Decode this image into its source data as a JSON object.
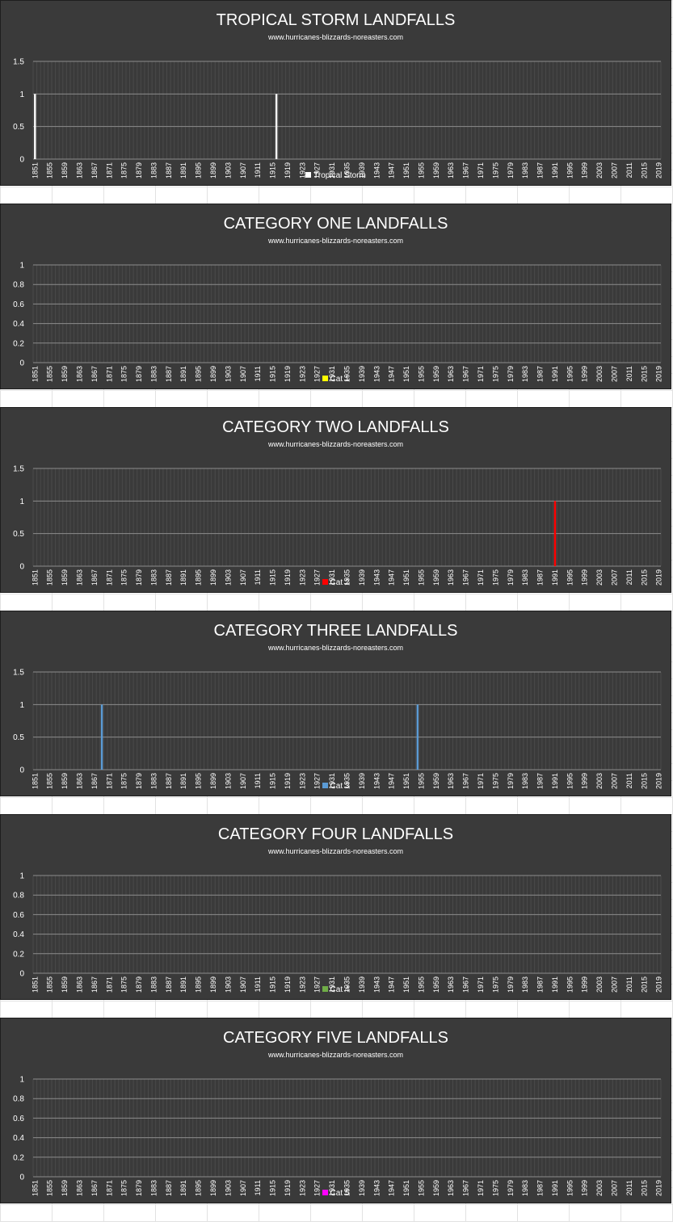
{
  "colors": {
    "background": "#3a3a3a",
    "text": "#ffffff",
    "gridline": "#8c8c8c",
    "category_lines": "#4a4a4a"
  },
  "chart_data": [
    {
      "type": "bar",
      "title": "TROPICAL STORM LANDFALLS",
      "subtitle": "www.hurricanes-blizzards-noreasters.com",
      "x_start": 1851,
      "x_end": 2020,
      "x_tick_step": 4,
      "ylim": [
        0,
        1.5
      ],
      "yticks": [
        "0",
        "0.5",
        "1",
        "1.5"
      ],
      "grid": true,
      "legend_position": "bottom",
      "series": [
        {
          "name": "Tropical Storm",
          "color": "#ffffff",
          "points": [
            {
              "x": 1851,
              "y": 1
            },
            {
              "x": 1916,
              "y": 1
            }
          ]
        }
      ]
    },
    {
      "type": "bar",
      "title": "CATEGORY ONE LANDFALLS",
      "subtitle": "www.hurricanes-blizzards-noreasters.com",
      "x_start": 1851,
      "x_end": 2020,
      "x_tick_step": 4,
      "ylim": [
        0,
        1
      ],
      "yticks": [
        "0",
        "0.2",
        "0.4",
        "0.6",
        "0.8",
        "1"
      ],
      "grid": true,
      "legend_position": "bottom",
      "series": [
        {
          "name": "Cat 1",
          "color": "#ffff00",
          "points": []
        }
      ]
    },
    {
      "type": "bar",
      "title": "CATEGORY TWO LANDFALLS",
      "subtitle": "www.hurricanes-blizzards-noreasters.com",
      "x_start": 1851,
      "x_end": 2020,
      "x_tick_step": 4,
      "ylim": [
        0,
        1.5
      ],
      "yticks": [
        "0",
        "0.5",
        "1",
        "1.5"
      ],
      "grid": true,
      "legend_position": "bottom",
      "series": [
        {
          "name": "Cat 2",
          "color": "#ff0000",
          "points": [
            {
              "x": 1991,
              "y": 1
            }
          ]
        }
      ]
    },
    {
      "type": "bar",
      "title": "CATEGORY THREE LANDFALLS",
      "subtitle": "www.hurricanes-blizzards-noreasters.com",
      "x_start": 1851,
      "x_end": 2020,
      "x_tick_step": 4,
      "ylim": [
        0,
        1.5
      ],
      "yticks": [
        "0",
        "0.5",
        "1",
        "1.5"
      ],
      "grid": true,
      "legend_position": "bottom",
      "series": [
        {
          "name": "Cat 3",
          "color": "#5b9bd5",
          "points": [
            {
              "x": 1869,
              "y": 1
            },
            {
              "x": 1954,
              "y": 1
            }
          ]
        }
      ]
    },
    {
      "type": "bar",
      "title": "CATEGORY FOUR LANDFALLS",
      "subtitle": "www.hurricanes-blizzards-noreasters.com",
      "x_start": 1851,
      "x_end": 2020,
      "x_tick_step": 4,
      "ylim": [
        0,
        1
      ],
      "yticks": [
        "0",
        "0.2",
        "0.4",
        "0.6",
        "0.8",
        "1"
      ],
      "grid": true,
      "legend_position": "bottom",
      "series": [
        {
          "name": "Cat 4",
          "color": "#70ad47",
          "points": []
        }
      ]
    },
    {
      "type": "bar",
      "title": "CATEGORY FIVE LANDFALLS",
      "subtitle": "www.hurricanes-blizzards-noreasters.com",
      "x_start": 1851,
      "x_end": 2020,
      "x_tick_step": 4,
      "ylim": [
        0,
        1
      ],
      "yticks": [
        "0",
        "0.2",
        "0.4",
        "0.6",
        "0.8",
        "1"
      ],
      "grid": true,
      "legend_position": "bottom",
      "series": [
        {
          "name": "Cat 5",
          "color": "#ff00ff",
          "points": []
        }
      ]
    }
  ]
}
